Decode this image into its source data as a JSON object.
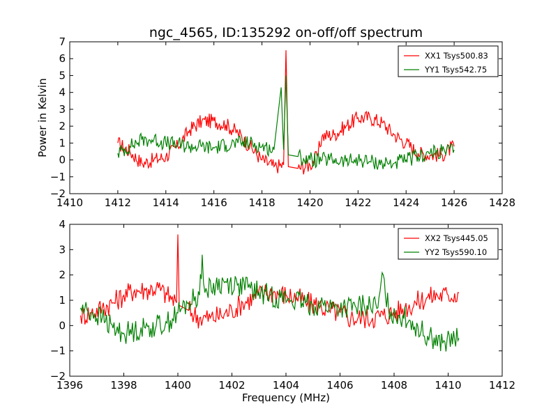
{
  "figure": {
    "title": "ngc_4565, ID:135292 on-off/off spectrum",
    "ylabel": "Power in Kelvin",
    "xlabel": "Frequency (MHz)"
  },
  "chart_data": [
    {
      "type": "line",
      "title": "ngc_4565, ID:135292 on-off/off spectrum",
      "xlabel": "",
      "ylabel": "Power in Kelvin",
      "xlim": [
        1410,
        1428
      ],
      "ylim": [
        -2,
        7
      ],
      "xticks": [
        1410,
        1412,
        1414,
        1416,
        1418,
        1420,
        1422,
        1424,
        1426,
        1428
      ],
      "yticks": [
        -2,
        -1,
        0,
        1,
        2,
        3,
        4,
        5,
        6,
        7
      ],
      "legend_position": "top-right",
      "grid": false,
      "series": [
        {
          "name": "XX1 Tsys500.83",
          "color": "#ff0000",
          "x": [
            1412.0,
            1412.5,
            1413.0,
            1413.5,
            1414.0,
            1414.5,
            1415.0,
            1415.5,
            1416.0,
            1416.5,
            1417.0,
            1417.5,
            1418.0,
            1418.5,
            1418.9,
            1419.0,
            1419.1,
            1419.5,
            1420.0,
            1420.3,
            1420.5,
            1421.0,
            1421.5,
            1422.0,
            1422.5,
            1423.0,
            1423.5,
            1424.0,
            1424.5,
            1425.0,
            1425.5,
            1426.0
          ],
          "y": [
            1.0,
            0.5,
            -0.2,
            0.0,
            0.2,
            0.8,
            1.8,
            2.3,
            2.3,
            2.1,
            1.6,
            0.8,
            0.0,
            -0.4,
            -0.3,
            6.5,
            -0.4,
            -0.5,
            -0.3,
            0.2,
            1.4,
            1.5,
            2.0,
            2.5,
            2.5,
            2.2,
            1.5,
            1.0,
            0.4,
            0.3,
            0.3,
            0.8
          ]
        },
        {
          "name": "YY1 Tsys542.75",
          "color": "#008000",
          "x": [
            1412.0,
            1412.5,
            1413.0,
            1413.5,
            1414.0,
            1414.5,
            1415.0,
            1415.5,
            1416.0,
            1416.5,
            1417.0,
            1417.5,
            1418.0,
            1418.5,
            1418.8,
            1418.9,
            1419.0,
            1419.1,
            1419.5,
            1420.0,
            1420.5,
            1421.0,
            1421.5,
            1422.0,
            1422.5,
            1423.0,
            1423.5,
            1424.0,
            1424.5,
            1425.0,
            1425.5,
            1426.0
          ],
          "y": [
            0.4,
            0.8,
            1.2,
            1.2,
            1.0,
            0.9,
            0.8,
            0.8,
            0.7,
            0.9,
            1.0,
            1.0,
            0.8,
            0.6,
            4.3,
            0.6,
            5.0,
            0.3,
            0.2,
            0.0,
            0.0,
            0.0,
            -0.1,
            0.0,
            -0.1,
            -0.2,
            -0.2,
            0.0,
            0.2,
            0.4,
            0.5,
            0.6
          ]
        }
      ]
    },
    {
      "type": "line",
      "title": "",
      "xlabel": "Frequency (MHz)",
      "ylabel": "",
      "xlim": [
        1396,
        1412
      ],
      "ylim": [
        -2,
        4
      ],
      "xticks": [
        1396,
        1398,
        1400,
        1402,
        1404,
        1406,
        1408,
        1410,
        1412
      ],
      "yticks": [
        -2,
        -1,
        0,
        1,
        2,
        3,
        4
      ],
      "legend_position": "top-right",
      "grid": false,
      "series": [
        {
          "name": "XX2 Tsys445.05",
          "color": "#ff0000",
          "x": [
            1396.4,
            1396.8,
            1397.2,
            1397.6,
            1398.0,
            1398.4,
            1398.8,
            1399.2,
            1399.6,
            1399.95,
            1400.0,
            1400.05,
            1400.4,
            1400.8,
            1401.2,
            1401.6,
            1402.0,
            1402.4,
            1402.8,
            1403.2,
            1403.6,
            1404.0,
            1404.4,
            1404.8,
            1405.2,
            1405.6,
            1406.0,
            1406.4,
            1406.8,
            1407.2,
            1407.6,
            1408.0,
            1408.4,
            1408.8,
            1409.2,
            1409.6,
            1410.0,
            1410.4
          ],
          "y": [
            0.4,
            0.5,
            0.7,
            0.9,
            1.2,
            1.4,
            1.4,
            1.5,
            1.2,
            0.9,
            3.6,
            0.8,
            0.6,
            0.3,
            0.3,
            0.4,
            0.6,
            0.9,
            1.1,
            1.3,
            1.3,
            1.2,
            1.1,
            0.9,
            0.8,
            0.6,
            0.5,
            0.3,
            0.3,
            0.3,
            0.4,
            0.5,
            0.7,
            0.9,
            1.1,
            1.2,
            1.2,
            1.3
          ]
        },
        {
          "name": "YY2 Tsys590.10",
          "color": "#008000",
          "x": [
            1396.4,
            1396.8,
            1397.2,
            1397.6,
            1398.0,
            1398.4,
            1398.8,
            1399.2,
            1399.6,
            1400.0,
            1400.4,
            1400.8,
            1400.9,
            1401.0,
            1401.4,
            1401.8,
            1402.2,
            1402.6,
            1403.0,
            1403.4,
            1403.8,
            1404.2,
            1404.6,
            1405.0,
            1405.4,
            1405.8,
            1406.2,
            1406.6,
            1407.0,
            1407.4,
            1407.6,
            1407.8,
            1408.2,
            1408.6,
            1409.0,
            1409.4,
            1409.8,
            1410.4
          ],
          "y": [
            0.7,
            0.5,
            0.3,
            -0.1,
            -0.3,
            -0.2,
            -0.1,
            0.0,
            0.1,
            0.5,
            0.9,
            1.2,
            2.8,
            1.3,
            1.6,
            1.7,
            1.6,
            1.5,
            1.3,
            1.2,
            1.1,
            1.0,
            0.9,
            0.8,
            0.8,
            0.7,
            0.7,
            0.7,
            0.8,
            0.7,
            2.0,
            0.6,
            0.4,
            0.2,
            -0.2,
            -0.5,
            -0.7,
            -0.5
          ]
        }
      ]
    }
  ]
}
